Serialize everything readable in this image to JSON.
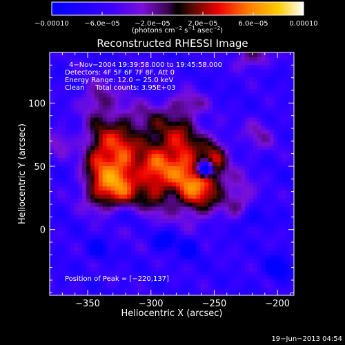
{
  "chart_data": {
    "type": "heatmap",
    "title": "Reconstructed RHESSI Image",
    "xlabel": "Heliocentric X (arcsec)",
    "ylabel": "Heliocentric Y (arcsec)",
    "xlim": [
      -380,
      -187
    ],
    "ylim": [
      -52,
      140
    ],
    "xticks": [
      -350,
      -300,
      -250,
      -200
    ],
    "xtick_labels": [
      "−350",
      "−300",
      "−250",
      "−200"
    ],
    "yticks": [
      0,
      50,
      100
    ],
    "ytick_labels": [
      "0",
      "50",
      "100"
    ],
    "colorbar": {
      "range": [
        -0.0001,
        0.0001
      ],
      "ticks": [
        -0.0001,
        -6e-05,
        -2e-05,
        2e-05,
        6e-05,
        0.0001
      ],
      "tick_labels": [
        "−0.00010",
        "−6.0e−05",
        "−2.0e−05",
        "2.0e−05",
        "6.0e−05",
        "0.00010"
      ],
      "unit_label": "(photons cm",
      "unit_exp1": "−2",
      "unit_mid": " s",
      "unit_exp2": "−1",
      "unit_mid2": " asec",
      "unit_exp3": "−2",
      "unit_end": ")"
    },
    "annotations": [
      "4−Nov−2004 19:39:58.000 to 19:45:58.000",
      "Detectors: 4F 5F 6F 7F 8F, Att 0",
      "Energy Range: 12.0 − 25.0 keV",
      "Clean     Total counts: 3.95E+03"
    ],
    "peak_label": "Position of Peak = [−220,137]",
    "peak": [
      -220,
      137
    ],
    "sources": [
      {
        "x": -340,
        "y": 55,
        "sx": 10,
        "sy": 26,
        "amp": 0.9
      },
      {
        "x": -322,
        "y": 52,
        "sx": 9,
        "sy": 24,
        "amp": 0.85
      },
      {
        "x": -298,
        "y": 45,
        "sx": 11,
        "sy": 22,
        "amp": 0.95
      },
      {
        "x": -275,
        "y": 58,
        "sx": 11,
        "sy": 22,
        "amp": 0.9
      },
      {
        "x": -262,
        "y": 30,
        "sx": 12,
        "sy": 14,
        "amp": 0.85
      },
      {
        "x": -250,
        "y": 55,
        "sx": 8,
        "sy": 14,
        "amp": 0.7
      },
      {
        "x": -230,
        "y": 25,
        "sx": 9,
        "sy": 14,
        "amp": 0.45
      },
      {
        "x": -332,
        "y": 30,
        "sx": 14,
        "sy": 10,
        "amp": 0.4
      },
      {
        "x": -300,
        "y": 85,
        "sx": 18,
        "sy": 12,
        "amp": 0.35
      },
      {
        "x": -257,
        "y": 48,
        "sx": 4,
        "sy": 4,
        "amp": -1.6
      },
      {
        "x": -342,
        "y": 105,
        "sx": 9,
        "sy": 8,
        "amp": 0.4
      },
      {
        "x": -270,
        "y": 100,
        "sx": 10,
        "sy": 6,
        "amp": 0.35
      },
      {
        "x": -220,
        "y": 137,
        "sx": 9,
        "sy": 7,
        "amp": 0.55
      },
      {
        "x": -215,
        "y": 75,
        "sx": 9,
        "sy": 10,
        "amp": 0.35
      },
      {
        "x": -372,
        "y": 70,
        "sx": 7,
        "sy": 9,
        "amp": 0.35
      },
      {
        "x": -290,
        "y": -8,
        "sx": 6,
        "sy": 5,
        "amp": -0.6
      },
      {
        "x": -270,
        "y": -15,
        "sx": 5,
        "sy": 5,
        "amp": -0.6
      },
      {
        "x": -342,
        "y": -15,
        "sx": 5,
        "sy": 5,
        "amp": -0.55
      },
      {
        "x": -200,
        "y": -30,
        "sx": 6,
        "sy": 6,
        "amp": -0.65
      },
      {
        "x": -222,
        "y": 8,
        "sx": 8,
        "sy": 6,
        "amp": -0.4
      },
      {
        "x": -325,
        "y": 10,
        "sx": 12,
        "sy": 6,
        "amp": -0.3
      }
    ]
  },
  "footer": {
    "date_stamp": "19−Jun−2013 04:54"
  }
}
